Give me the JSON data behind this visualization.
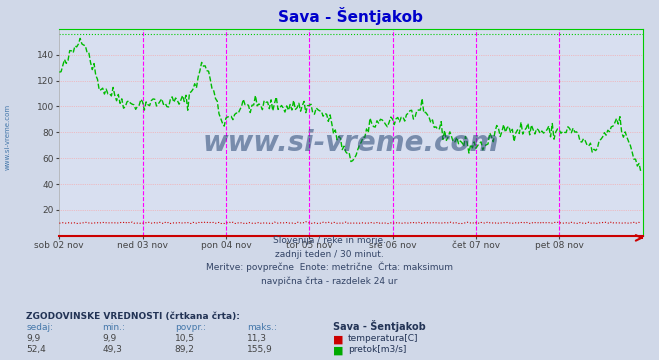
{
  "title": "Sava - Šentjakob",
  "title_color": "#0000cc",
  "bg_color": "#d0d8e8",
  "plot_bg_color": "#d8dff0",
  "grid_color": "#ff9999",
  "x_labels": [
    "sob 02 nov",
    "ned 03 nov",
    "pon 04 nov",
    "tor 05 nov",
    "sre 06 nov",
    "čet 07 nov",
    "pet 08 nov"
  ],
  "x_positions": [
    0,
    48,
    96,
    144,
    192,
    240,
    288
  ],
  "total_points": 336,
  "ylim": [
    0,
    160
  ],
  "yticks": [
    20,
    40,
    60,
    80,
    100,
    120,
    140
  ],
  "vline_color": "#ff00ff",
  "flow_line_color": "#00bb00",
  "temp_line_color": "#cc0000",
  "temp_max": 11.3,
  "temp_min": 9.9,
  "temp_avg": 10.5,
  "temp_now": 9.9,
  "flow_max": 155.9,
  "flow_min": 49.3,
  "flow_avg": 89.2,
  "flow_now": 52.4,
  "footer_line1": "Slovenija / reke in morje.",
  "footer_line2": "zadnji teden / 30 minut.",
  "footer_line3": "Meritve: povprečne  Enote: metrične  Črta: maksimum",
  "footer_line4": "navpična črta - razdelek 24 ur",
  "table_header": "ZGODOVINSKE VREDNOSTI (črtkana črta):",
  "col_headers": [
    "sedaj:",
    "min.:",
    "povpr.:",
    "maks.:"
  ],
  "col_header_color": "#4477aa",
  "station_label": "Sava - Šentjakob",
  "watermark": "www.si-vreme.com",
  "watermark_color": "#1a3a6a",
  "left_label": "www.si-vreme.com",
  "left_label_color": "#4477aa"
}
